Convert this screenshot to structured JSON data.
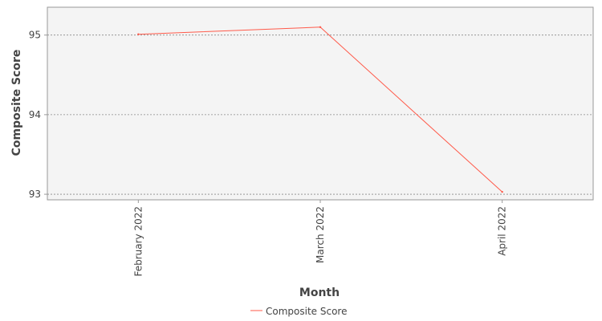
{
  "chart_data": {
    "type": "line",
    "title": "",
    "xlabel": "Month",
    "ylabel": "Composite Score",
    "categories": [
      "February 2022",
      "March 2022",
      "April 2022"
    ],
    "series": [
      {
        "name": "Composite Score",
        "values": [
          95.01,
          95.1,
          93.03
        ],
        "color": "#ff5a4a"
      }
    ],
    "ylim": [
      92.93,
      95.35
    ],
    "yticks": [
      93,
      94,
      95
    ],
    "grid": true,
    "legend_position": "bottom"
  },
  "colors": {
    "plot_background": "#f4f4f4",
    "grid": "#888888",
    "axis_line": "#999999",
    "line": "#ff5a4a"
  }
}
